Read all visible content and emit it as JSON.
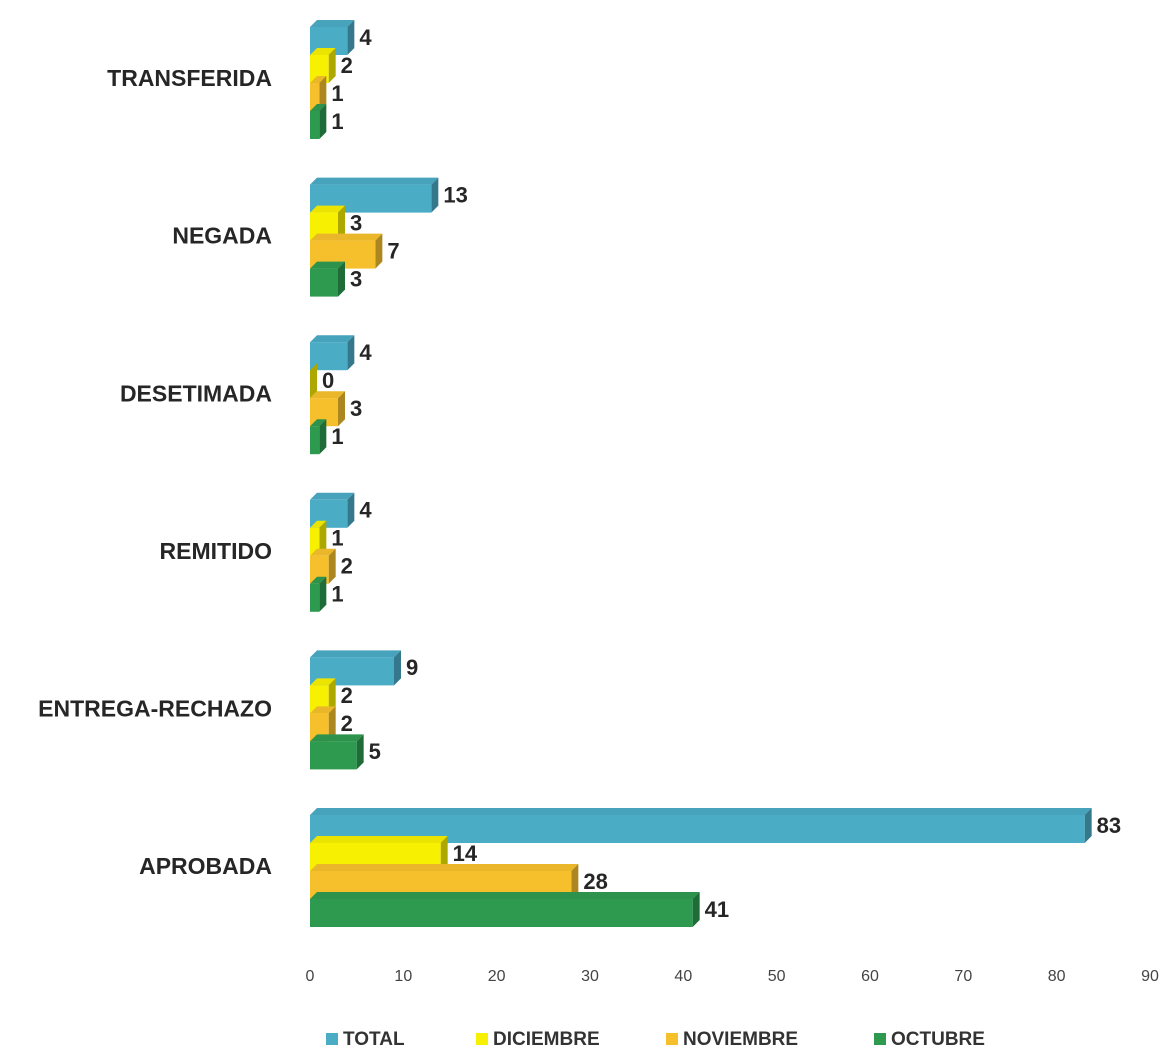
{
  "chart_data": {
    "type": "bar",
    "orientation": "horizontal",
    "categories": [
      "TRANSFERIDA",
      "NEGADA",
      "DESETIMADA",
      "REMITIDO",
      "ENTREGA-RECHAZO",
      "APROBADA"
    ],
    "series": [
      {
        "name": "TOTAL",
        "color": "#4bacc6",
        "values": [
          4,
          13,
          4,
          4,
          9,
          83
        ]
      },
      {
        "name": "DICIEMBRE",
        "color": "#f7f000",
        "values": [
          2,
          3,
          0,
          1,
          2,
          14
        ]
      },
      {
        "name": "NOVIEMBRE",
        "color": "#f6c02c",
        "values": [
          1,
          7,
          3,
          2,
          2,
          28
        ]
      },
      {
        "name": "OCTUBRE",
        "color": "#2e9a50",
        "values": [
          1,
          3,
          1,
          1,
          5,
          41
        ]
      }
    ],
    "xlim": [
      0,
      90
    ],
    "xticks": [
      0,
      10,
      20,
      30,
      40,
      50,
      60,
      70,
      80,
      90
    ],
    "grid": false,
    "legend": "bottom"
  }
}
